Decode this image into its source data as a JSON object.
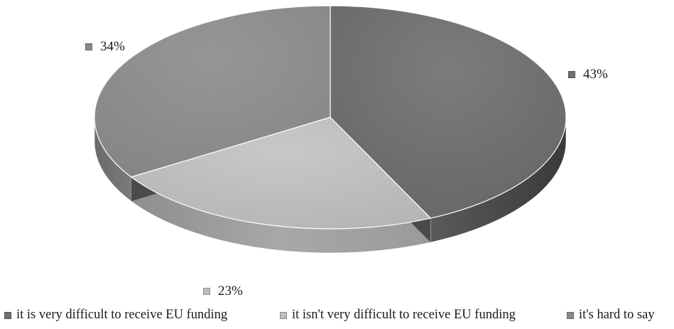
{
  "chart_data": {
    "type": "pie",
    "title": "",
    "categories": [
      "it is very difficult to receive EU funding",
      "it isn't very difficult to receive EU funding",
      "it's hard to say"
    ],
    "values": [
      43,
      23,
      34
    ],
    "value_labels": [
      "43%",
      "23%",
      "34%"
    ],
    "colors": [
      "#6f6f6f",
      "#bdbdbd",
      "#8a8a8a"
    ],
    "three_d": true,
    "legend_position": "bottom"
  }
}
